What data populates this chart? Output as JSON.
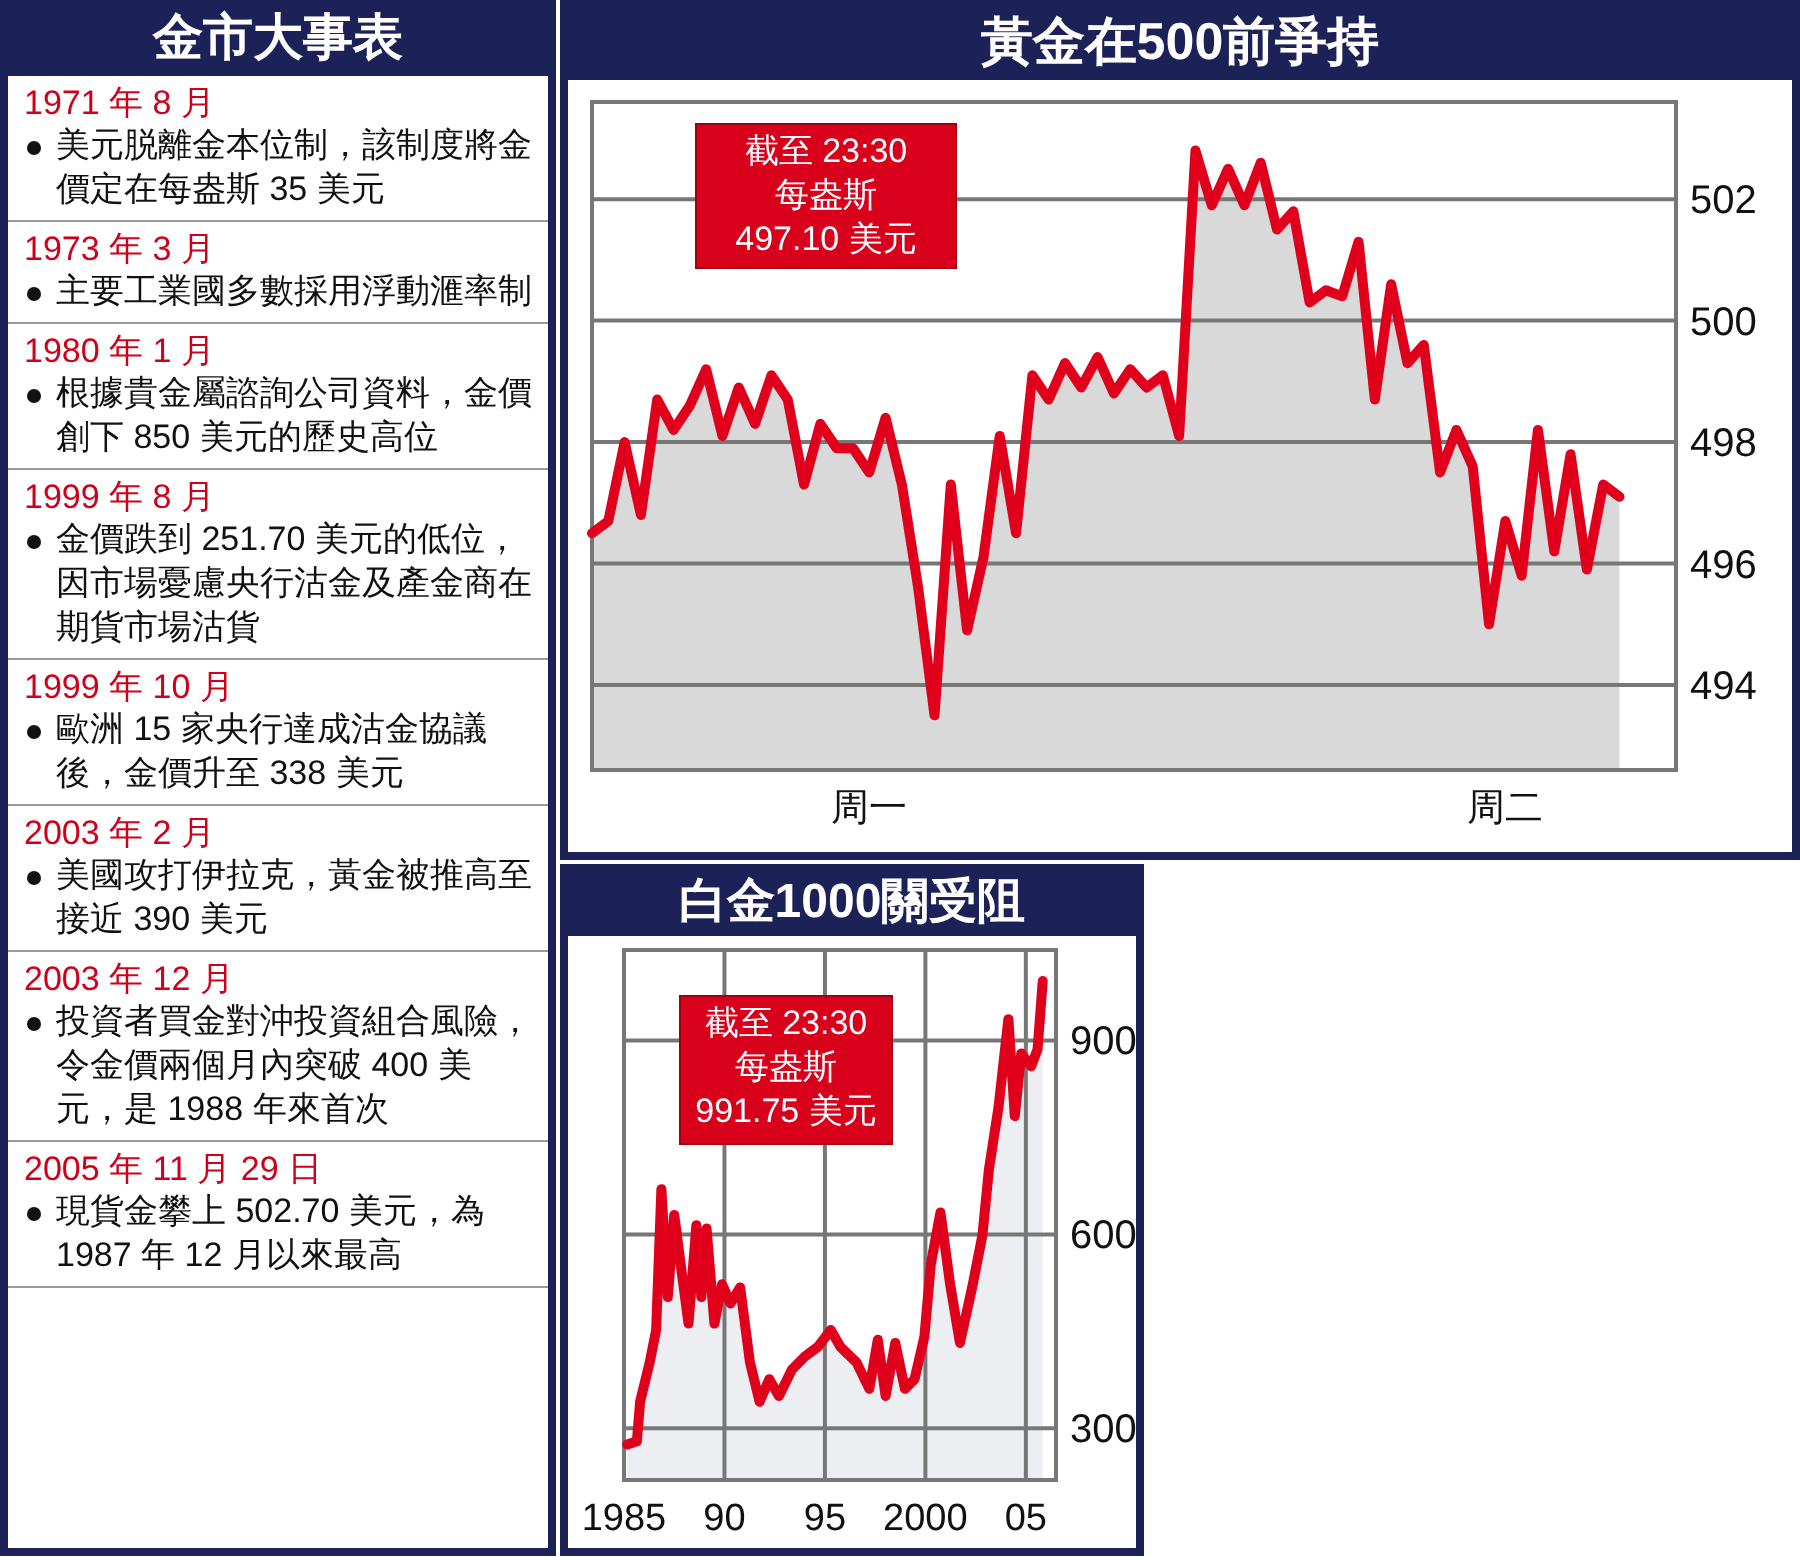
{
  "chart_data": [
    {
      "type": "other",
      "title": "金市大事表",
      "annotations": [
        "1971 年 8 月",
        "美元脱離金本位制，該制度將金價定在每盎斯 35 美元",
        "1973 年 3 月",
        "主要工業國多數採用浮動滙率制",
        "1980 年 1 月",
        "根據貴金屬諮詢公司資料，金價創下 850 美元的歷史高位",
        "1999 年 8 月",
        "金價跌到 251.70 美元的低位，因市場憂慮央行沽金及產金商在期貨市場沽貨",
        "1999 年 10 月",
        "歐洲 15 家央行達成沽金協議後，金價升至 338 美元",
        "2003 年 2 月",
        "美國攻打伊拉克，黃金被推高至接近 390 美元",
        "2003 年 12 月",
        "投資者買金對沖投資組合風險，令金價兩個月內突破 400 美元，是 1988 年來首次",
        "2005 年 11 月 29 日",
        "現貨金攀上 502.70 美元，為 1987 年 12 月以來最高"
      ]
    },
    {
      "type": "area",
      "title": "黃金在500前爭持",
      "annotations": [
        "截至 23:30\n每盎斯\n497.10 美元"
      ],
      "categories": [
        null,
        null,
        null,
        null,
        null,
        null,
        null,
        null,
        null,
        null,
        null,
        null,
        null,
        null,
        null,
        null,
        null,
        "周一",
        null,
        null,
        null,
        null,
        null,
        null,
        null,
        null,
        null,
        null,
        null,
        null,
        null,
        null,
        null,
        null,
        null,
        null,
        null,
        null,
        null,
        null,
        null,
        null,
        null,
        null,
        null,
        null,
        null,
        null,
        null,
        null,
        null,
        null,
        null,
        null,
        null,
        null,
        "周二",
        null,
        null,
        null,
        null,
        null,
        null,
        null
      ],
      "ylim": [
        492.6,
        503.6
      ],
      "yticks": [
        494,
        496,
        498,
        500,
        502
      ],
      "grid": "y",
      "series": [
        {
          "color": "#e0001b",
          "values": [
            496.5,
            496.7,
            498.0,
            496.8,
            498.7,
            498.2,
            498.6,
            499.2,
            498.1,
            498.9,
            498.3,
            499.1,
            498.7,
            497.3,
            498.3,
            497.9,
            497.9,
            497.5,
            498.4,
            497.3,
            495.6,
            493.5,
            497.3,
            494.9,
            496.1,
            498.1,
            496.5,
            499.1,
            498.7,
            499.3,
            498.9,
            499.4,
            498.8,
            499.2,
            498.9,
            499.1,
            498.1,
            502.8,
            501.9,
            502.5,
            501.9,
            502.6,
            501.5,
            501.8,
            500.3,
            500.5,
            500.4,
            501.3,
            498.7,
            500.6,
            499.3,
            499.6,
            497.5,
            498.2,
            497.6,
            495.0,
            496.7,
            495.8,
            498.2,
            496.2,
            497.8,
            495.9,
            497.3,
            497.1
          ]
        }
      ]
    },
    {
      "type": "area",
      "title": "白金1000關受阻",
      "annotations": [
        "截至 23:30\n每盎斯\n991.75 美元"
      ],
      "xlim": [
        1985,
        2006.5
      ],
      "xticks": [
        {
          "value": 1985,
          "label": "1985"
        },
        {
          "value": 1990,
          "label": "90"
        },
        {
          "value": 1995,
          "label": "95"
        },
        {
          "value": 2000,
          "label": "2000"
        },
        {
          "value": 2005,
          "label": "05"
        }
      ],
      "ylim": [
        220,
        1040
      ],
      "yticks": [
        300,
        600,
        900
      ],
      "grid": true,
      "series": [
        {
          "color": "#e0001b",
          "x": [
            1985.16,
            1985.64,
            1985.8,
            1986.28,
            1986.6,
            1986.86,
            1987.18,
            1987.5,
            1987.95,
            1988.21,
            1988.6,
            1988.85,
            1989.11,
            1989.5,
            1989.88,
            1990.3,
            1990.78,
            1991.27,
            1991.75,
            1992.23,
            1992.71,
            1993.36,
            1994.0,
            1994.65,
            1995.29,
            1995.77,
            1996.57,
            1997.21,
            1997.63,
            1998.02,
            1998.5,
            1998.98,
            1999.46,
            1999.95,
            2000.27,
            2000.75,
            2001.23,
            2001.72,
            2002.36,
            2002.84,
            2003.16,
            2003.64,
            2004.13,
            2004.45,
            2004.77,
            2005.26,
            2005.58,
            2005.84
          ],
          "values": [
            275,
            280,
            341,
            402,
            452,
            670,
            503,
            630,
            523,
            462,
            614,
            503,
            609,
            462,
            523,
            493,
            518,
            402,
            341,
            376,
            350,
            391,
            411,
            426,
            452,
            426,
            402,
            361,
            437,
            350,
            432,
            361,
            376,
            442,
            554,
            634,
            523,
            432,
            523,
            599,
            700,
            797,
            933,
            783,
            880,
            860,
            886,
            992
          ]
        }
      ]
    }
  ]
}
